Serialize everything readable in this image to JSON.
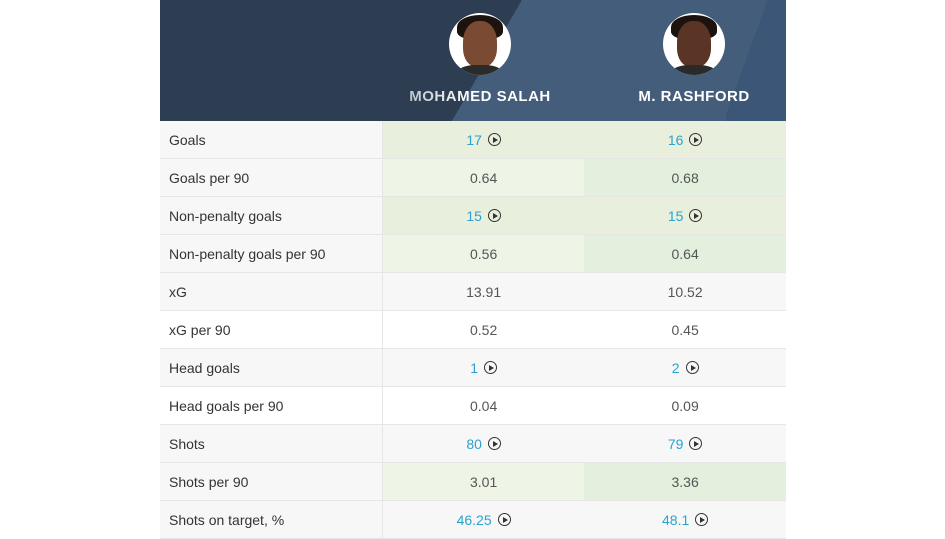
{
  "players": [
    {
      "name": "MOHAMED SALAH",
      "avatar_icon": "player-photo-icon"
    },
    {
      "name": "M. RASHFORD",
      "avatar_icon": "player-photo-icon"
    }
  ],
  "colors": {
    "header_bg": "#2e3e52",
    "header_accent": "#445d7a",
    "link": "#2ba3cc",
    "win_light": "#eef5e6",
    "win_strong": "#e2f0dd",
    "tie": "#e9f0e0",
    "neutral_bg": "#f7f7f7"
  },
  "rows": [
    {
      "label": "Goals",
      "values": [
        "17",
        "16"
      ],
      "links": [
        true,
        true
      ],
      "bg": [
        "#e9efdd",
        "#e9efdd"
      ]
    },
    {
      "label": "Goals per 90",
      "values": [
        "0.64",
        "0.68"
      ],
      "links": [
        false,
        false
      ],
      "bg": [
        "#eef5e6",
        "#e2f0dd"
      ]
    },
    {
      "label": "Non-penalty goals",
      "values": [
        "15",
        "15"
      ],
      "links": [
        true,
        true
      ],
      "bg": [
        "#e9efdd",
        "#e9efdd"
      ]
    },
    {
      "label": "Non-penalty goals per 90",
      "values": [
        "0.56",
        "0.64"
      ],
      "links": [
        false,
        false
      ],
      "bg": [
        "#eef5e6",
        "#e2f0dd"
      ]
    },
    {
      "label": "xG",
      "values": [
        "13.91",
        "10.52"
      ],
      "links": [
        false,
        false
      ],
      "bg": [
        "#f7f7f7",
        "#f7f7f7"
      ]
    },
    {
      "label": "xG per 90",
      "values": [
        "0.52",
        "0.45"
      ],
      "links": [
        false,
        false
      ],
      "bg": [
        "#ffffff",
        "#ffffff"
      ]
    },
    {
      "label": "Head goals",
      "values": [
        "1",
        "2"
      ],
      "links": [
        true,
        true
      ],
      "bg": [
        "#f7f7f7",
        "#f7f7f7"
      ]
    },
    {
      "label": "Head goals per 90",
      "values": [
        "0.04",
        "0.09"
      ],
      "links": [
        false,
        false
      ],
      "bg": [
        "#ffffff",
        "#ffffff"
      ]
    },
    {
      "label": "Shots",
      "values": [
        "80",
        "79"
      ],
      "links": [
        true,
        true
      ],
      "bg": [
        "#f7f7f7",
        "#f7f7f7"
      ]
    },
    {
      "label": "Shots per 90",
      "values": [
        "3.01",
        "3.36"
      ],
      "links": [
        false,
        false
      ],
      "bg": [
        "#eef5e6",
        "#e2f0dd"
      ]
    },
    {
      "label": "Shots on target, %",
      "values": [
        "46.25",
        "48.1"
      ],
      "links": [
        true,
        true
      ],
      "bg": [
        "#f7f7f7",
        "#f7f7f7"
      ]
    }
  ]
}
